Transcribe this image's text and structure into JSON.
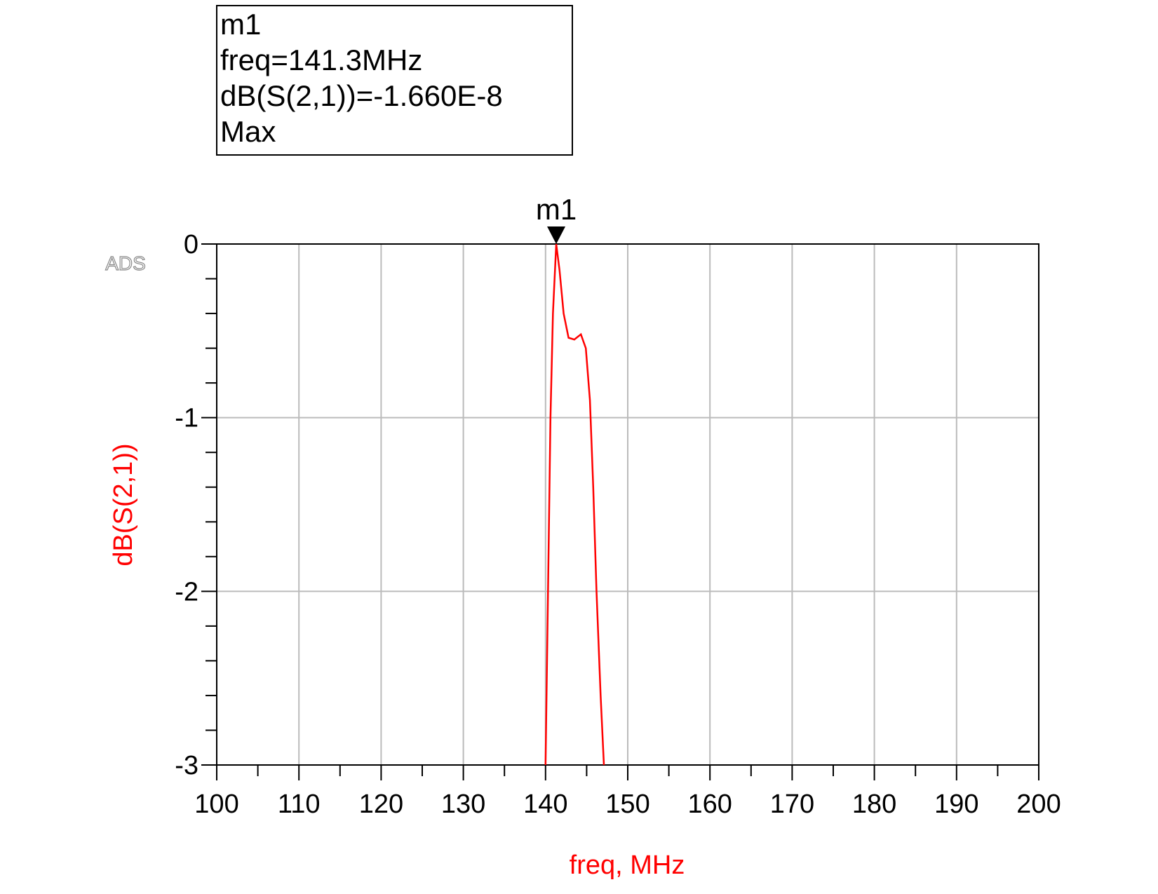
{
  "chart_data": {
    "type": "line",
    "watermark": "ADS",
    "xlabel": "freq, MHz",
    "ylabel": "dB(S(2,1))",
    "x": [
      140.0,
      140.3,
      140.6,
      140.9,
      141.3,
      141.7,
      142.2,
      142.8,
      143.5,
      144.3,
      144.9,
      145.4,
      145.8,
      146.2,
      146.7,
      147.1
    ],
    "series": [
      {
        "name": "dB(S(2,1))",
        "color": "#ff0000",
        "values": [
          -3.0,
          -2.0,
          -1.0,
          -0.4,
          -1.66e-08,
          -0.15,
          -0.4,
          -0.54,
          -0.55,
          -0.52,
          -0.6,
          -0.9,
          -1.4,
          -2.0,
          -2.6,
          -3.0
        ]
      }
    ],
    "xlim": [
      100,
      200
    ],
    "xticks": [
      100,
      110,
      120,
      130,
      140,
      150,
      160,
      170,
      180,
      190,
      200
    ],
    "x_minor_ticks": [
      105,
      115,
      125,
      135,
      145,
      155,
      165,
      175,
      185,
      195
    ],
    "ylim": [
      -3,
      0
    ],
    "yticks": [
      -3,
      -2,
      -1,
      0
    ],
    "y_minor_ticks": [
      -0.2,
      -0.4,
      -0.6,
      -0.8,
      -1.2,
      -1.4,
      -1.6,
      -1.8,
      -2.2,
      -2.4,
      -2.6,
      -2.8
    ],
    "grid": true,
    "marker": {
      "name": "m1",
      "x": 141.3,
      "y": -1.66e-08,
      "box": [
        "m1",
        "freq=141.3MHz",
        "dB(S(2,1))=-1.660E-8",
        "Max"
      ]
    }
  }
}
